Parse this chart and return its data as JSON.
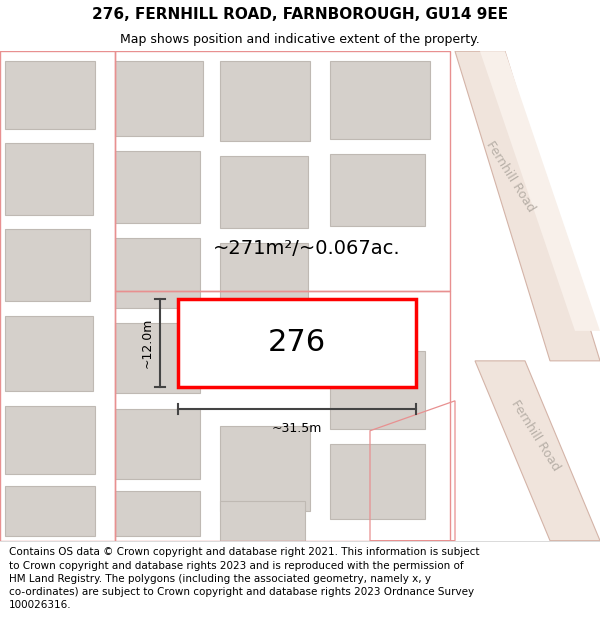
{
  "title": "276, FERNHILL ROAD, FARNBOROUGH, GU14 9EE",
  "subtitle": "Map shows position and indicative extent of the property.",
  "footer": "Contains OS data © Crown copyright and database right 2021. This information is subject\nto Crown copyright and database rights 2023 and is reproduced with the permission of\nHM Land Registry. The polygons (including the associated geometry, namely x, y\nco-ordinates) are subject to Crown copyright and database rights 2023 Ordnance Survey\n100026316.",
  "area_label": "~271m²/~0.067ac.",
  "property_label": "276",
  "width_label": "~31.5m",
  "height_label": "~12.0m",
  "map_bg": "#ede8e2",
  "building_fill": "#d5d0cb",
  "building_edge": "#bfb9b3",
  "road_fill": "#f0e4dc",
  "road_edge": "#d4b4a8",
  "highlight_color": "#ff0000",
  "dim_color": "#444444",
  "road_text_color": "#b8b0a8",
  "pink_outline": "#e89090",
  "title_fontsize": 11,
  "subtitle_fontsize": 9,
  "footer_fontsize": 7.5,
  "area_fontsize": 14,
  "prop_label_fontsize": 22,
  "dim_fontsize": 9,
  "road_fontsize": 9
}
